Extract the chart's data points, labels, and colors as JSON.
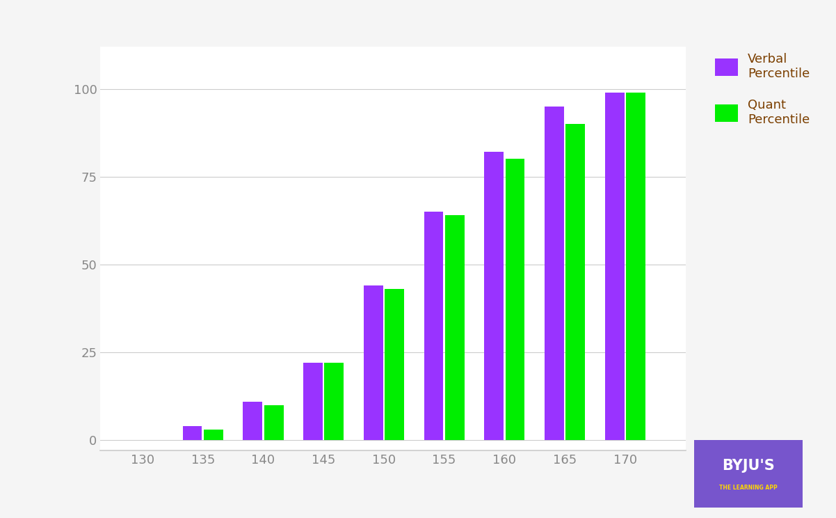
{
  "categories": [
    130,
    135,
    140,
    145,
    150,
    155,
    160,
    165,
    170
  ],
  "verbal_percentile": [
    0,
    4,
    11,
    22,
    44,
    65,
    82,
    95,
    99
  ],
  "quant_percentile": [
    0,
    3,
    10,
    22,
    43,
    64,
    80,
    90,
    99
  ],
  "verbal_color": "#9933FF",
  "quant_color": "#00EE00",
  "background_color": "#F5F5F5",
  "plot_bg_color": "#FFFFFF",
  "grid_color": "#CCCCCC",
  "ylabel_ticks": [
    0,
    25,
    50,
    75,
    100
  ],
  "ytick_labels": [
    "0",
    "25",
    "50",
    "75",
    "100"
  ],
  "ylim": [
    -3,
    112
  ],
  "xlim": [
    126.5,
    175
  ],
  "legend_verbal": "Verbal\nPercentile",
  "legend_quant": "Quant\nPercentile",
  "legend_text_color": "#7B3F00",
  "tick_color": "#888888",
  "bar_width": 1.6,
  "byju_bg_color": "#7755CC",
  "byju_text_color": "#FFFFFF",
  "byju_sub_color": "#FFD700"
}
